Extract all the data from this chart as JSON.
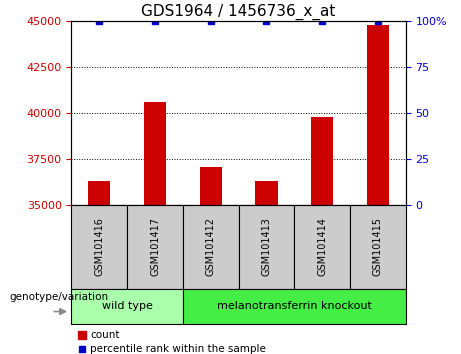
{
  "title": "GDS1964 / 1456736_x_at",
  "samples": [
    "GSM101416",
    "GSM101417",
    "GSM101412",
    "GSM101413",
    "GSM101414",
    "GSM101415"
  ],
  "counts": [
    36300,
    40600,
    37100,
    36300,
    39800,
    44800
  ],
  "percentiles": [
    100,
    100,
    100,
    100,
    100,
    100
  ],
  "ylim_left": [
    35000,
    45000
  ],
  "ylim_right": [
    0,
    100
  ],
  "yticks_left": [
    35000,
    37500,
    40000,
    42500,
    45000
  ],
  "yticks_right": [
    0,
    25,
    50,
    75,
    100
  ],
  "bar_color": "#cc0000",
  "percentile_color": "#0000cc",
  "bar_width": 0.4,
  "groups": [
    {
      "label": "wild type",
      "n": 2,
      "color": "#aaffaa"
    },
    {
      "label": "melanotransferrin knockout",
      "n": 4,
      "color": "#44ee44"
    }
  ],
  "legend_count_label": "count",
  "legend_percentile_label": "percentile rank within the sample",
  "genotype_label": "genotype/variation",
  "label_area_color": "#cccccc",
  "title_fontsize": 11,
  "tick_fontsize": 8,
  "label_fontsize": 8
}
